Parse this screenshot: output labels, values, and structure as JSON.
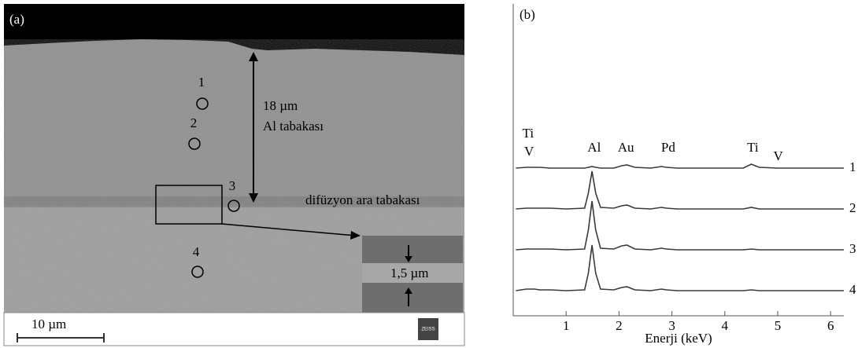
{
  "panel_a": {
    "label": "(a)",
    "points": [
      "1",
      "2",
      "3",
      "4"
    ],
    "thickness": "18 µm",
    "layer": "Al tabakası",
    "diffusion": "difüzyon ara tabakası",
    "inset": "1,5 µm",
    "scale": "10 µm",
    "logo": "ZEISS"
  },
  "chart_data": {
    "type": "line",
    "title": "(b)",
    "x_label": "Enerji (keV)",
    "x": [
      0.05,
      0.25,
      0.4,
      0.5,
      0.7,
      1.0,
      1.35,
      1.42,
      1.49,
      1.56,
      1.65,
      1.9,
      2.05,
      2.15,
      2.3,
      2.6,
      2.8,
      2.9,
      3.1,
      3.8,
      4.35,
      4.5,
      4.65,
      5.0,
      6.25
    ],
    "series": [
      {
        "name": "1",
        "color": "#3a3a3a",
        "values": [
          0,
          1,
          1,
          1,
          0,
          0,
          0,
          1,
          2,
          1,
          0,
          0,
          3,
          4,
          1,
          0,
          2,
          1,
          0,
          0,
          0,
          5,
          1,
          0,
          0
        ]
      },
      {
        "name": "2",
        "color": "#3a3a3a",
        "values": [
          0,
          1,
          1,
          1,
          1,
          0,
          1,
          20,
          48,
          20,
          2,
          1,
          4,
          5,
          1,
          0,
          2,
          1,
          0,
          0,
          0,
          2,
          0,
          0,
          0
        ]
      },
      {
        "name": "3",
        "color": "#3a3a3a",
        "values": [
          0,
          1,
          1,
          1,
          1,
          0,
          1,
          25,
          62,
          25,
          2,
          1,
          5,
          6,
          1,
          0,
          2,
          1,
          0,
          0,
          0,
          1,
          0,
          0,
          0
        ]
      },
      {
        "name": "4",
        "color": "#3a3a3a",
        "values": [
          0,
          2,
          2,
          1,
          1,
          0,
          1,
          22,
          58,
          22,
          2,
          1,
          4,
          5,
          1,
          0,
          2,
          1,
          0,
          0,
          0,
          1,
          0,
          0,
          0
        ]
      }
    ],
    "annotations": [
      {
        "text": "Ti",
        "x": 0.25
      },
      {
        "text": "V",
        "x": 0.27
      },
      {
        "text": "Al",
        "x": 1.5
      },
      {
        "text": "Au",
        "x": 2.1
      },
      {
        "text": "Pd",
        "x": 2.9
      },
      {
        "text": "Ti",
        "x": 4.5
      },
      {
        "text": "V",
        "x": 4.98
      }
    ],
    "xlim": [
      0,
      6.25
    ],
    "xticks": [
      1,
      2,
      3,
      4,
      5,
      6
    ],
    "ylim": [
      0,
      50
    ]
  }
}
